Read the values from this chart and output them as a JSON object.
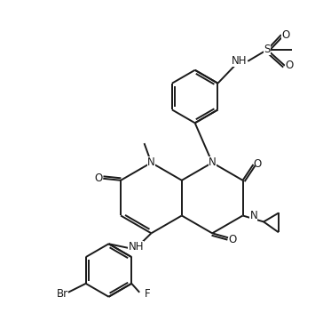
{
  "bg_color": "#ffffff",
  "line_color": "#1a1a1a",
  "line_width": 1.4,
  "font_size": 8.5,
  "figsize": [
    3.64,
    3.52
  ],
  "dpi": 100,
  "xlim": [
    0,
    364
  ],
  "ylim": [
    0,
    352
  ]
}
